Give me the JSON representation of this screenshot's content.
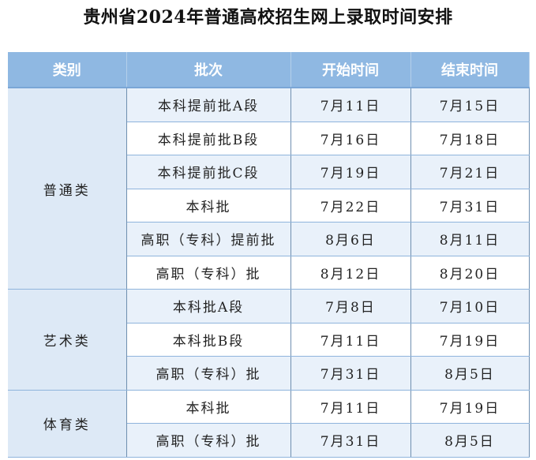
{
  "title": "贵州省2024年普通高校招生网上录取时间安排",
  "headers": [
    "类别",
    "批次",
    "开始时间",
    "结束时间"
  ],
  "groups": [
    {
      "category": "普通类",
      "rows": [
        [
          "本科提前批A段",
          "7月11日",
          "7月15日"
        ],
        [
          "本科提前批B段",
          "7月16日",
          "7月18日"
        ],
        [
          "本科提前批C段",
          "7月19日",
          "7月21日"
        ],
        [
          "本科批",
          "7月22日",
          "7月31日"
        ],
        [
          "高职（专科）提前批",
          "8月6日",
          "8月11日"
        ],
        [
          "高职（专科）批",
          "8月12日",
          "8月20日"
        ]
      ]
    },
    {
      "category": "艺术类",
      "rows": [
        [
          "本科批A段",
          "7月8日",
          "7月10日"
        ],
        [
          "本科批B段",
          "7月11日",
          "7月19日"
        ],
        [
          "高职（专科）批",
          "7月31日",
          "8月5日"
        ]
      ]
    },
    {
      "category": "体育类",
      "rows": [
        [
          "本科批",
          "7月11日",
          "7月19日"
        ],
        [
          "高职（专科）批",
          "7月31日",
          "8月5日"
        ]
      ]
    }
  ]
}
